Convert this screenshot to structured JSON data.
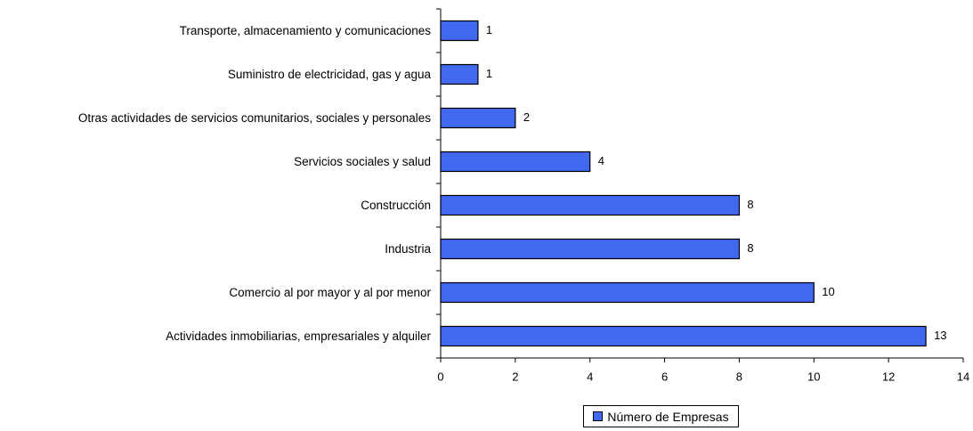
{
  "chart_data": {
    "type": "bar",
    "orientation": "horizontal",
    "categories": [
      "Transporte, almacenamiento y comunicaciones",
      "Suministro de electricidad, gas y agua",
      "Otras actividades de servicios comunitarios, sociales y personales",
      "Servicios sociales y salud",
      "Construcción",
      "Industria",
      "Comercio al por mayor y al por menor",
      "Actividades inmobiliarias, empresariales y alquiler"
    ],
    "series": [
      {
        "name": "Número de Empresas",
        "color": "#4169f0",
        "values": [
          1,
          1,
          2,
          4,
          8,
          8,
          10,
          13
        ]
      }
    ],
    "xlim": [
      0,
      14
    ],
    "xticks": [
      0,
      2,
      4,
      6,
      8,
      10,
      12,
      14
    ],
    "legend": "bottom"
  }
}
